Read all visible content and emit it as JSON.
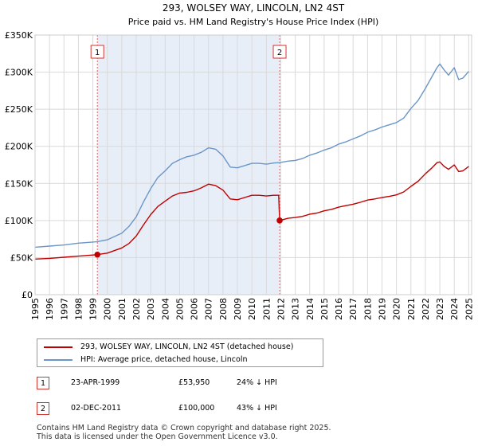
{
  "chart_data": {
    "type": "line",
    "title": "293, WOLSEY WAY, LINCOLN, LN2 4ST",
    "subtitle": "Price paid vs. HM Land Registry's House Price Index (HPI)",
    "xlabel": "",
    "ylabel": "",
    "xlim": [
      1995,
      2025.2
    ],
    "ylim": [
      0,
      350000
    ],
    "yticks": [
      0,
      50000,
      100000,
      150000,
      200000,
      250000,
      300000,
      350000
    ],
    "ytick_labels": [
      "£0",
      "£50K",
      "£100K",
      "£150K",
      "£200K",
      "£250K",
      "£300K",
      "£350K"
    ],
    "xticks": [
      1995,
      1996,
      1997,
      1998,
      1999,
      2000,
      2001,
      2002,
      2003,
      2004,
      2005,
      2006,
      2007,
      2008,
      2009,
      2010,
      2011,
      2012,
      2013,
      2014,
      2015,
      2016,
      2017,
      2018,
      2019,
      2020,
      2021,
      2022,
      2023,
      2024,
      2025
    ],
    "xtick_labels": [
      "1995",
      "1996",
      "1997",
      "1998",
      "1999",
      "2000",
      "2001",
      "2002",
      "2003",
      "2004",
      "2005",
      "2006",
      "2007",
      "2008",
      "2009",
      "2010",
      "2011",
      "2012",
      "2013",
      "2014",
      "2015",
      "2016",
      "2017",
      "2018",
      "2019",
      "2020",
      "2021",
      "2022",
      "2023",
      "2024",
      "2025"
    ],
    "grid": true,
    "shaded_range": [
      1999.31,
      2011.92
    ],
    "series": [
      {
        "name": "HPI: Average price, detached house, Lincoln",
        "color": "#6a96c8",
        "x": [
          1995.0,
          1996.0,
          1997.0,
          1998.0,
          1999.0,
          1999.31,
          2000.0,
          2001.0,
          2001.5,
          2002.0,
          2002.5,
          2003.0,
          2003.5,
          2004.0,
          2004.5,
          2005.0,
          2005.5,
          2006.0,
          2006.5,
          2007.0,
          2007.5,
          2008.0,
          2008.5,
          2009.0,
          2009.5,
          2010.0,
          2010.5,
          2011.0,
          2011.5,
          2011.92,
          2012.5,
          2013.0,
          2013.5,
          2014.0,
          2014.5,
          2015.0,
          2015.5,
          2016.0,
          2016.5,
          2017.0,
          2017.5,
          2018.0,
          2018.5,
          2019.0,
          2019.5,
          2020.0,
          2020.5,
          2021.0,
          2021.5,
          2022.0,
          2022.4,
          2022.8,
          2023.0,
          2023.3,
          2023.6,
          2024.0,
          2024.3,
          2024.6,
          2025.0
        ],
        "y": [
          64000,
          65500,
          67000,
          69500,
          71000,
          71500,
          74000,
          83000,
          92000,
          105000,
          125000,
          143000,
          158000,
          167000,
          177000,
          182000,
          186000,
          188000,
          192000,
          198000,
          196000,
          187000,
          172000,
          171000,
          174000,
          177000,
          177000,
          176000,
          177500,
          178000,
          180000,
          181000,
          183500,
          188000,
          191000,
          195000,
          198000,
          203000,
          206000,
          210000,
          214000,
          219000,
          222000,
          226000,
          229000,
          232000,
          238000,
          251000,
          262000,
          278000,
          292000,
          306000,
          311000,
          303000,
          296000,
          306000,
          290000,
          292000,
          301000
        ]
      },
      {
        "name": "293, WOLSEY WAY, LINCOLN, LN2 4ST (detached house)",
        "color": "#c00000",
        "x": [
          1995.0,
          1996.0,
          1997.0,
          1998.0,
          1999.0,
          1999.31,
          2000.0,
          2001.0,
          2001.5,
          2002.0,
          2002.5,
          2003.0,
          2003.5,
          2004.0,
          2004.5,
          2005.0,
          2005.5,
          2006.0,
          2006.5,
          2007.0,
          2007.5,
          2008.0,
          2008.5,
          2009.0,
          2009.5,
          2010.0,
          2010.5,
          2011.0,
          2011.5,
          2011.85,
          2011.92,
          2012.5,
          2013.0,
          2013.5,
          2014.0,
          2014.5,
          2015.0,
          2015.5,
          2016.0,
          2016.5,
          2017.0,
          2017.5,
          2018.0,
          2018.5,
          2019.0,
          2019.5,
          2020.0,
          2020.5,
          2021.0,
          2021.5,
          2022.0,
          2022.4,
          2022.8,
          2023.0,
          2023.3,
          2023.6,
          2024.0,
          2024.3,
          2024.6,
          2025.0
        ],
        "y": [
          48000,
          49000,
          50500,
          52000,
          53500,
          53950,
          56000,
          63000,
          69000,
          79000,
          94000,
          108000,
          119000,
          126000,
          133000,
          137000,
          138000,
          140000,
          144000,
          149000,
          147000,
          141000,
          129000,
          128000,
          131000,
          134000,
          134000,
          133000,
          134000,
          134000,
          100000,
          103000,
          104000,
          105500,
          108500,
          110000,
          113000,
          115000,
          118000,
          120000,
          122000,
          124500,
          127500,
          129000,
          131000,
          132500,
          134500,
          138500,
          146000,
          153000,
          163000,
          170000,
          178000,
          179000,
          173000,
          169000,
          175000,
          166000,
          167000,
          173000
        ]
      }
    ],
    "markers": [
      {
        "label": "1",
        "x": 1999.31,
        "y": 53950
      },
      {
        "label": "2",
        "x": 2011.92,
        "y": 100000
      }
    ]
  },
  "legend": {
    "items": [
      {
        "label": "293, WOLSEY WAY, LINCOLN, LN2 4ST (detached house)",
        "color": "#c00000"
      },
      {
        "label": "HPI: Average price, detached house, Lincoln",
        "color": "#6a96c8"
      }
    ]
  },
  "transactions": [
    {
      "num": "1",
      "date": "23-APR-1999",
      "price": "£53,950",
      "hpi": "24% ↓ HPI"
    },
    {
      "num": "2",
      "date": "02-DEC-2011",
      "price": "£100,000",
      "hpi": "43% ↓ HPI"
    }
  ],
  "footer": {
    "line1": "Contains HM Land Registry data © Crown copyright and database right 2025.",
    "line2": "This data is licensed under the Open Government Licence v3.0."
  }
}
